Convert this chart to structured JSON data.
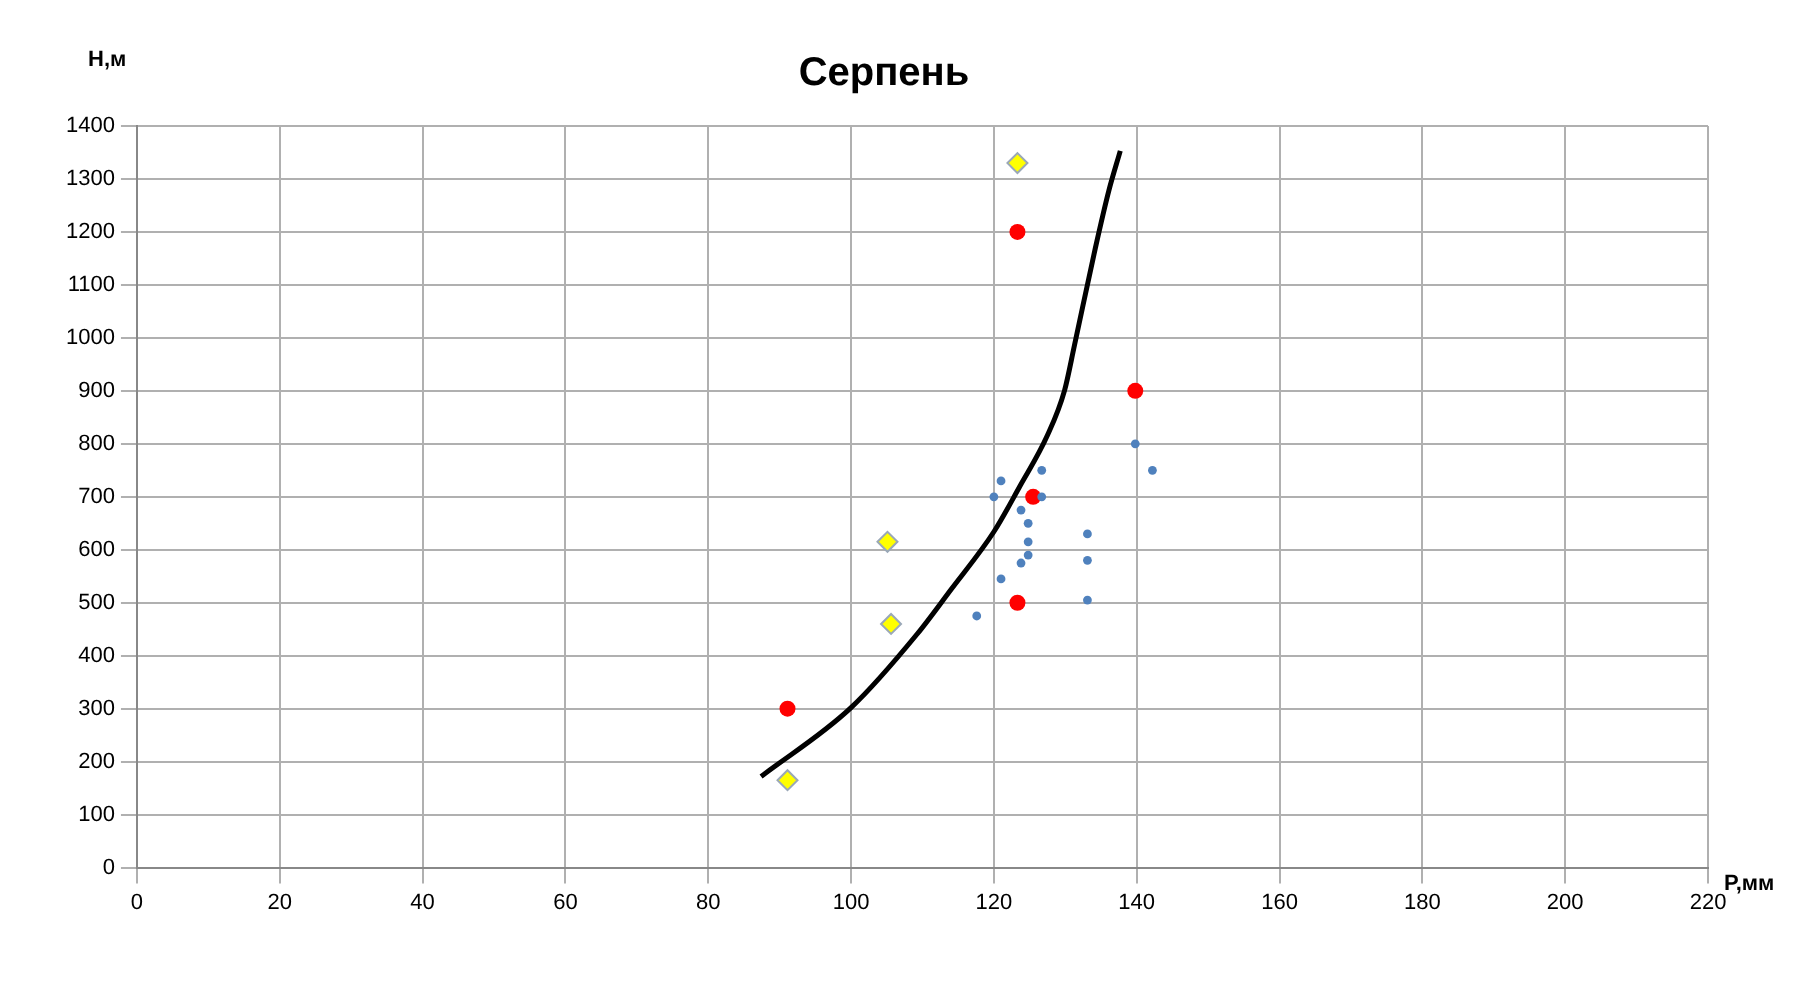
{
  "chart_data": {
    "type": "scatter",
    "title": "Серпень",
    "xlabel": "Р,мм",
    "ylabel": "Н,м",
    "xlim": [
      0,
      220
    ],
    "xticks": [
      0,
      20,
      40,
      60,
      80,
      100,
      120,
      140,
      160,
      180,
      200,
      220
    ],
    "ylim": [
      0,
      1400
    ],
    "yticks": [
      0,
      100,
      200,
      300,
      400,
      500,
      600,
      700,
      800,
      900,
      1000,
      1100,
      1200,
      1300,
      1400
    ],
    "grid": true,
    "legend": false,
    "series": [
      {
        "marker": "circle",
        "color": "#4f81bd",
        "x": [
          139.8,
          142.2,
          121,
          126.7,
          120,
          126.7,
          123.8,
          124.8,
          124.8,
          133.1,
          124.8,
          123.8,
          133.1,
          121,
          133.1,
          117.6
        ],
        "values": [
          800,
          750,
          730,
          750,
          700,
          700,
          675,
          650,
          615,
          630,
          590,
          575,
          580,
          545,
          505,
          475
        ]
      },
      {
        "marker": "circle",
        "color": "#ff0000",
        "x": [
          123.3,
          139.8,
          125.5,
          123.3,
          91.1
        ],
        "values": [
          1200,
          900,
          700,
          500,
          300
        ]
      },
      {
        "marker": "diamond",
        "color": "#ffff00",
        "x": [
          123.3,
          105.1,
          105.6,
          91.1
        ],
        "values": [
          1330,
          615,
          460,
          165
        ]
      },
      {
        "type": "line",
        "marker": "none",
        "color": "#000000",
        "x": [
          87.4,
          100,
          109.2,
          114,
          120,
          123.6,
          127.5,
          129.9,
          131.3,
          134.2,
          136.1,
          137.7
        ],
        "values": [
          172,
          302,
          440,
          525,
          634,
          719,
          816,
          901,
          987,
          1169,
          1278,
          1353
        ]
      }
    ]
  }
}
